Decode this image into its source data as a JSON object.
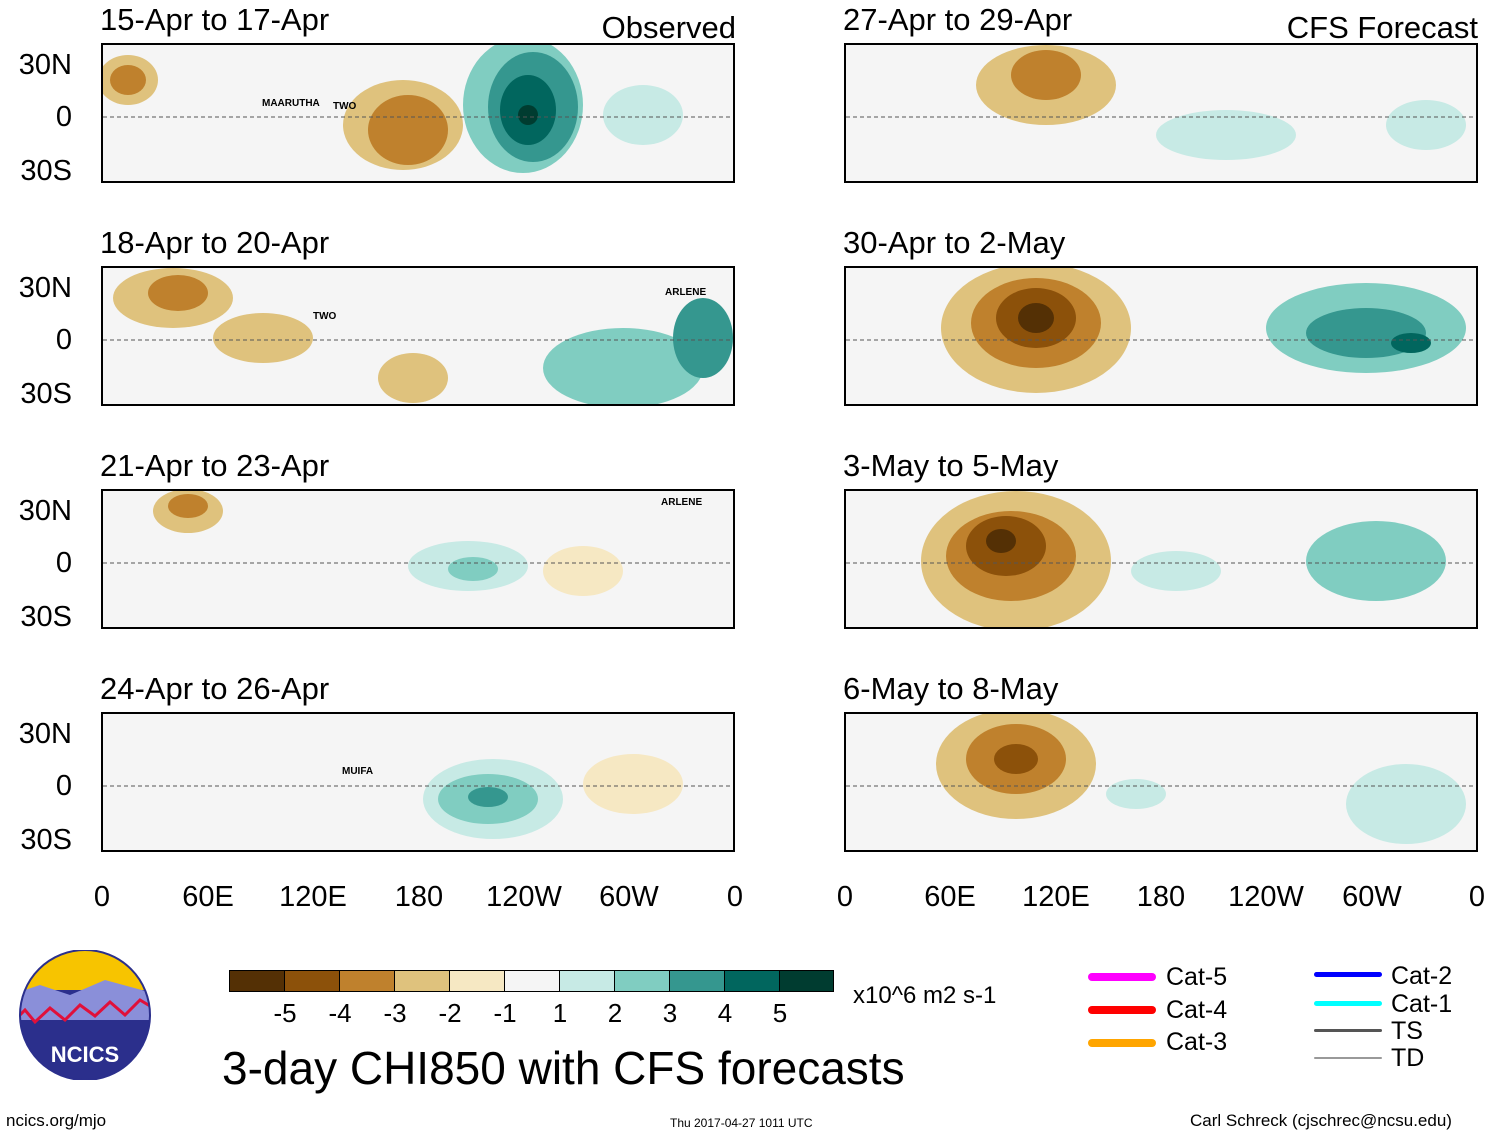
{
  "title": "3-day CHI850 with CFS forecasts",
  "column_titles": {
    "left": "Observed",
    "right": "CFS Forecast"
  },
  "lat_labels": [
    "30N",
    "0",
    "30S"
  ],
  "lon_labels": [
    "0",
    "60E",
    "120E",
    "180",
    "120W",
    "60W",
    "0"
  ],
  "panels": [
    {
      "title": "15-Apr to 17-Apr",
      "storms": [
        "MAARUTHA",
        "TWO"
      ]
    },
    {
      "title": "18-Apr to 20-Apr",
      "storms": [
        "TWO",
        "ARLENE"
      ]
    },
    {
      "title": "21-Apr to 23-Apr",
      "storms": [
        "ARLENE"
      ]
    },
    {
      "title": "24-Apr to 26-Apr",
      "storms": [
        "MUIFA"
      ]
    },
    {
      "title": "27-Apr to 29-Apr",
      "storms": []
    },
    {
      "title": "30-Apr to 2-May",
      "storms": []
    },
    {
      "title": "3-May to 5-May",
      "storms": []
    },
    {
      "title": "6-May to 8-May",
      "storms": []
    }
  ],
  "colorbar": {
    "labels": [
      "-5",
      "-4",
      "-3",
      "-2",
      "-1",
      "1",
      "2",
      "3",
      "4",
      "5"
    ],
    "colors": [
      "#543005",
      "#8c510a",
      "#bf812d",
      "#dfc27d",
      "#f6e8c3",
      "#f5f5f5",
      "#c7eae5",
      "#80cdc1",
      "#35978f",
      "#01665e",
      "#003c30"
    ],
    "units": "x10^6 m2 s-1"
  },
  "track_legend": [
    {
      "label": "Cat-5",
      "color": "#ff00ff"
    },
    {
      "label": "Cat-4",
      "color": "#ff0000"
    },
    {
      "label": "Cat-3",
      "color": "#ffa500"
    },
    {
      "label": "Cat-2",
      "color": "#0000ff"
    },
    {
      "label": "Cat-1",
      "color": "#00ffff"
    },
    {
      "label": "TS",
      "color": "#555555"
    },
    {
      "label": "TD",
      "color": "#999999"
    }
  ],
  "logo_text": "NCICS",
  "footer": {
    "url": "ncics.org/mjo",
    "timestamp": "Thu 2017-04-27 1011 UTC",
    "author": "Carl Schreck (cjschrec@ncsu.edu)"
  }
}
